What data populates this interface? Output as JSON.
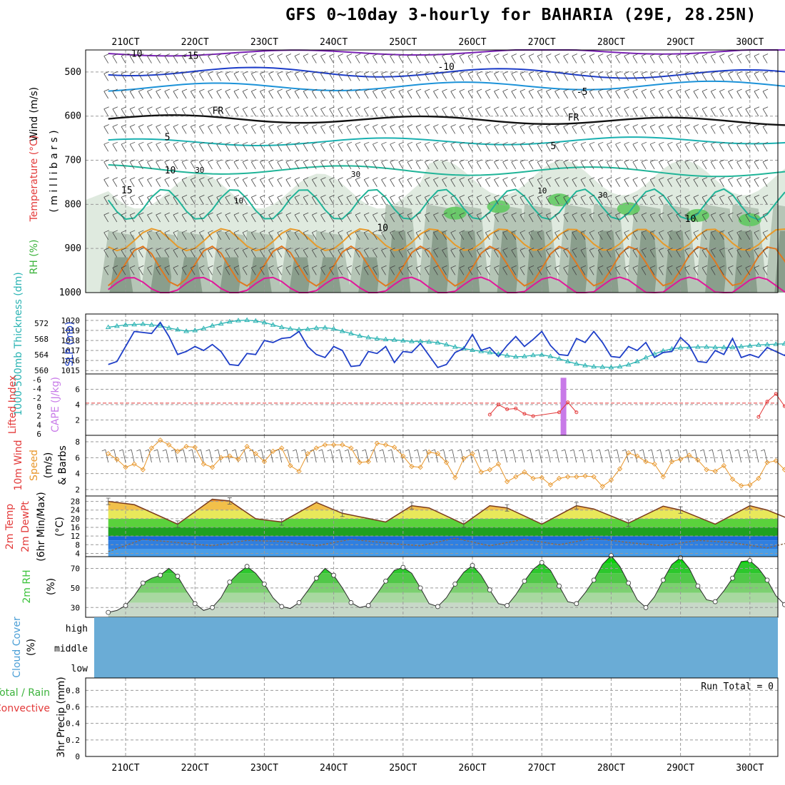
{
  "title": "GFS 0~10day 3-hourly for BAHARIA (29E, 28.25N)",
  "date_labels": [
    "21OCT",
    "22OCT",
    "23OCT",
    "24OCT",
    "25OCT",
    "26OCT",
    "27OCT",
    "28OCT",
    "29OCT",
    "30OCT"
  ],
  "colors": {
    "grid": "#9a9a9a",
    "rh_dark": "#8a9e8c",
    "rh_mid": "#b5c5b6",
    "rh_light": "#dfeadf",
    "rh_green": "#5cc85c",
    "slp": "#1f3fc8",
    "thickness": "#2ab3b3",
    "li": "#e33a3a",
    "cape": "#c87ae8",
    "wind": "#e8962a",
    "temp_line": "#7a3b1e",
    "dewpt": "#8c6a4a",
    "rh_fill": "#3cc33c",
    "cloud": "#6aacd6"
  },
  "chart_data": [
    {
      "panel": "upper_air",
      "type": "heatmap",
      "ylabel_parts": [
        "Wind (m/s)",
        "Temperature (°C)",
        "RH (%)",
        "( m i l l i b a r s )"
      ],
      "y_ticks": [
        500,
        600,
        700,
        800,
        900,
        1000
      ],
      "ylim": [
        1000,
        450
      ],
      "isotherm_labels": [
        {
          "text": "-15",
          "t": 8.5,
          "p": 470,
          "color": "#7a22b4"
        },
        {
          "text": "-10",
          "t": 2.0,
          "p": 465,
          "color": "#1c3cc8"
        },
        {
          "text": "-10",
          "t": 38.0,
          "p": 495,
          "color": "#1c3cc8"
        },
        {
          "text": "-5",
          "t": 54.0,
          "p": 552,
          "color": "#1c92d8"
        },
        {
          "text": "FR",
          "t": 12.0,
          "p": 595,
          "color": "#000000"
        },
        {
          "text": "FR",
          "t": 53.0,
          "p": 610,
          "color": "#000000"
        },
        {
          "text": "5",
          "t": 6.5,
          "p": 655,
          "color": "#1ab0b0"
        },
        {
          "text": "5",
          "t": 51.0,
          "p": 675,
          "color": "#1ab0b0"
        },
        {
          "text": "10",
          "t": 6.5,
          "p": 730,
          "color": "#20b498"
        },
        {
          "text": "10",
          "t": 31.0,
          "p": 860,
          "color": "#20b498"
        },
        {
          "text": "10",
          "t": 66.5,
          "p": 840,
          "color": "#20b498"
        },
        {
          "text": "15",
          "t": 1.5,
          "p": 775,
          "color": "#d89a2a"
        }
      ],
      "rh_contour_labels": [
        {
          "text": "30",
          "t": 10.0,
          "p": 728
        },
        {
          "text": "30",
          "t": 28.0,
          "p": 738
        },
        {
          "text": "30",
          "t": 56.5,
          "p": 785
        },
        {
          "text": "10",
          "t": 49.5,
          "p": 775
        },
        {
          "text": "10",
          "t": 14.5,
          "p": 798
        }
      ]
    },
    {
      "panel": "slp_thickness",
      "type": "line",
      "ylabel_left": "1000-500mb Thickness (dm)",
      "ylabel_right": "SLP (mb)",
      "left_ticks": [
        560,
        564,
        568,
        572
      ],
      "right_ticks": [
        1015,
        1016,
        1017,
        1018,
        1019,
        1020
      ],
      "series": [
        {
          "name": "SLP (mb)",
          "values": [
            1015.6,
            1015.9,
            1017.4,
            1018.9,
            1018.8,
            1018.7,
            1019.8,
            1018.4,
            1016.6,
            1016.9,
            1017.4,
            1017.0,
            1017.6,
            1016.9,
            1015.6,
            1015.5,
            1016.7,
            1016.6,
            1018.0,
            1017.8,
            1018.2,
            1018.3,
            1018.9,
            1017.4,
            1016.6,
            1016.3,
            1017.4,
            1017.0,
            1015.4,
            1015.5,
            1016.9,
            1016.7,
            1017.4,
            1015.8,
            1016.9,
            1016.8,
            1017.7,
            1016.5,
            1015.3,
            1015.6,
            1016.8,
            1017.2,
            1018.6,
            1017.0,
            1017.3,
            1016.4,
            1017.5,
            1018.4,
            1017.4,
            1018.1,
            1018.9,
            1017.5,
            1016.6,
            1016.5,
            1018.2,
            1017.8,
            1018.9,
            1017.8,
            1016.4,
            1016.3,
            1017.4,
            1017.0,
            1017.8,
            1016.3,
            1016.8,
            1016.9,
            1018.3,
            1017.5,
            1015.9,
            1015.8,
            1017.0,
            1016.6,
            1018.2,
            1016.3,
            1016.6,
            1016.3,
            1017.3,
            1016.9,
            1016.5,
            1017.7,
            1018.3,
            1017.4
          ]
        },
        {
          "name": "1000-500mb Thickness (dm)",
          "values": [
            571.0,
            571.3,
            571.6,
            571.7,
            571.8,
            571.6,
            571.4,
            570.8,
            570.4,
            570.0,
            570.2,
            570.7,
            571.4,
            571.9,
            572.4,
            572.7,
            572.8,
            572.6,
            572.2,
            571.6,
            571.0,
            570.6,
            570.4,
            570.5,
            570.8,
            570.9,
            570.6,
            570.0,
            569.4,
            568.8,
            568.4,
            568.1,
            567.9,
            567.8,
            567.6,
            567.4,
            567.4,
            567.3,
            567.1,
            566.6,
            566.0,
            565.6,
            565.2,
            564.9,
            564.6,
            564.2,
            563.8,
            563.5,
            563.6,
            563.9,
            564.0,
            563.6,
            563.0,
            562.3,
            561.7,
            561.3,
            561.0,
            560.9,
            560.8,
            561.0,
            561.5,
            562.3,
            563.3,
            564.2,
            565.0,
            565.5,
            565.8,
            565.9,
            566.0,
            566.0,
            565.9,
            565.9,
            565.9,
            566.1,
            566.3,
            566.5,
            566.6,
            566.7,
            566.8,
            566.8,
            566.9,
            567.0
          ]
        }
      ]
    },
    {
      "panel": "lifted_index_cape",
      "type": "line",
      "ylabel_left": "Lifted Index",
      "ylabel_right": "CAPE (J/kg)",
      "left_ticks": [
        "-6",
        "-4",
        "-2",
        "0",
        "2",
        "4",
        "6"
      ],
      "right_ticks": [
        2,
        4,
        6
      ],
      "cape": {
        "name": "CAPE (J/kg)",
        "t": 52.5,
        "value": 7.5
      },
      "li_series": {
        "name": "Lifted Index",
        "points": [
          [
            44,
            5.3
          ],
          [
            45,
            4.0
          ],
          [
            46,
            4.6
          ],
          [
            47,
            4.5
          ],
          [
            48,
            5.2
          ],
          [
            49,
            5.5
          ],
          [
            52,
            5.0
          ],
          [
            53,
            3.7
          ],
          [
            54,
            5.0
          ],
          [
            75,
            5.6
          ],
          [
            76,
            3.6
          ],
          [
            77,
            2.6
          ],
          [
            78,
            4.2
          ],
          [
            79,
            5.3
          ],
          [
            80,
            5.0
          ],
          [
            81,
            6.0
          ]
        ]
      },
      "reference_line_value": 0
    },
    {
      "panel": "wind10m",
      "type": "line",
      "ylabel_parts": [
        "10m Wind",
        "Speed",
        "(m/s)",
        "& Barbs"
      ],
      "ticks": [
        2,
        4,
        6,
        8
      ],
      "series": [
        {
          "name": "10m Wind Speed (m/s)",
          "values": [
            6.5,
            5.8,
            4.8,
            5.2,
            4.5,
            7.2,
            8.2,
            7.6,
            6.8,
            7.4,
            7.3,
            5.2,
            4.8,
            6.0,
            6.2,
            5.8,
            7.4,
            6.5,
            5.5,
            6.8,
            7.2,
            5.0,
            4.3,
            6.5,
            7.2,
            7.6,
            7.6,
            7.6,
            7.2,
            5.4,
            5.5,
            7.8,
            7.6,
            7.3,
            6.2,
            4.9,
            4.8,
            6.7,
            6.5,
            5.4,
            3.5,
            5.9,
            6.5,
            4.2,
            4.5,
            5.2,
            3.0,
            3.6,
            4.2,
            3.4,
            3.5,
            2.6,
            3.4,
            3.6,
            3.6,
            3.7,
            3.6,
            2.4,
            3.2,
            4.6,
            6.6,
            6.2,
            5.5,
            5.2,
            3.6,
            5.5,
            5.8,
            6.3,
            5.7,
            4.5,
            4.3,
            5.0,
            3.3,
            2.5,
            2.6,
            3.4,
            5.4,
            5.6,
            4.5,
            4.8,
            2.1,
            1.8,
            3.2
          ]
        }
      ]
    },
    {
      "panel": "temp_dewpt",
      "type": "area",
      "ylabel_parts": [
        "2m Temp",
        "2m DewPt",
        "(6hr Min/Max)",
        "(°C)"
      ],
      "ticks": [
        4,
        8,
        12,
        16,
        20,
        24,
        28
      ],
      "series": [
        {
          "name": "2m Temp",
          "points": [
            [
              0,
              28.0
            ],
            [
              3,
              26.5
            ],
            [
              8,
              17.5
            ],
            [
              12,
              29.0
            ],
            [
              14,
              28.2
            ],
            [
              17,
              20.0
            ],
            [
              20,
              18.5
            ],
            [
              24,
              27.5
            ],
            [
              27,
              22.5
            ],
            [
              32,
              18.5
            ],
            [
              35,
              26.0
            ],
            [
              37,
              25.0
            ],
            [
              41,
              17.5
            ],
            [
              44,
              26.0
            ],
            [
              46,
              25.0
            ],
            [
              50,
              17.5
            ],
            [
              54,
              26.0
            ],
            [
              56,
              24.5
            ],
            [
              60,
              18.0
            ],
            [
              64,
              25.8
            ],
            [
              66,
              24.0
            ],
            [
              70,
              17.5
            ],
            [
              74,
              26.0
            ],
            [
              76,
              24.0
            ],
            [
              80,
              17.5
            ],
            [
              84,
              26.5
            ],
            [
              86,
              24.0
            ],
            [
              90,
              16.0
            ],
            [
              94,
              26.0
            ],
            [
              96,
              24.5
            ],
            [
              98,
              14.0
            ],
            [
              99,
              16.5
            ]
          ]
        },
        {
          "name": "2m DewPt",
          "points": [
            [
              0,
              4.8
            ],
            [
              4,
              10.5
            ],
            [
              8,
              9.0
            ],
            [
              12,
              7.5
            ],
            [
              16,
              10.0
            ],
            [
              20,
              9.5
            ],
            [
              24,
              7.5
            ],
            [
              28,
              10.5
            ],
            [
              32,
              8.8
            ],
            [
              36,
              7.5
            ],
            [
              40,
              11.0
            ],
            [
              44,
              7.5
            ],
            [
              48,
              10.5
            ],
            [
              52,
              8.0
            ],
            [
              56,
              11.0
            ],
            [
              60,
              9.0
            ],
            [
              64,
              7.5
            ],
            [
              68,
              10.0
            ],
            [
              72,
              9.0
            ],
            [
              76,
              6.5
            ],
            [
              80,
              10.5
            ],
            [
              84,
              8.5
            ],
            [
              88,
              7.0
            ],
            [
              92,
              12.0
            ],
            [
              96,
              10.5
            ],
            [
              98,
              7.5
            ],
            [
              99,
              8.5
            ]
          ]
        }
      ]
    },
    {
      "panel": "rh2m",
      "type": "area",
      "ylabel_parts": [
        "2m RH",
        "(%)"
      ],
      "ticks": [
        30,
        50,
        70
      ],
      "series": [
        {
          "name": "2m RH (%)",
          "values": [
            25,
            27,
            32,
            42,
            55,
            60,
            63,
            70,
            62,
            47,
            34,
            27,
            30,
            40,
            56,
            65,
            72,
            65,
            54,
            40,
            31,
            29,
            35,
            47,
            60,
            70,
            63,
            50,
            35,
            30,
            32,
            44,
            57,
            68,
            71,
            65,
            50,
            34,
            31,
            40,
            54,
            66,
            73,
            63,
            48,
            34,
            32,
            43,
            57,
            69,
            76,
            68,
            52,
            36,
            34,
            45,
            58,
            74,
            83,
            72,
            55,
            38,
            30,
            41,
            58,
            74,
            81,
            70,
            52,
            38,
            36,
            47,
            60,
            77,
            78,
            70,
            58,
            42,
            33,
            46,
            59,
            76,
            86,
            74,
            55,
            38,
            36
          ]
        }
      ]
    },
    {
      "panel": "cloud_cover",
      "type": "heatmap",
      "ylabel_parts": [
        "Cloud Cover",
        "(%)"
      ],
      "levels": [
        "high",
        "middle",
        "low"
      ],
      "values_percent": {
        "high": 0,
        "middle": 0,
        "low": 0
      }
    },
    {
      "panel": "precip",
      "type": "bar",
      "ylabel_parts": [
        "Total / Rain",
        "Convective",
        "3hr Precip (mm)"
      ],
      "ticks": [
        0,
        0.2,
        0.4,
        0.6,
        0.8
      ],
      "run_total_label": "Run Total = 0",
      "values": []
    }
  ]
}
